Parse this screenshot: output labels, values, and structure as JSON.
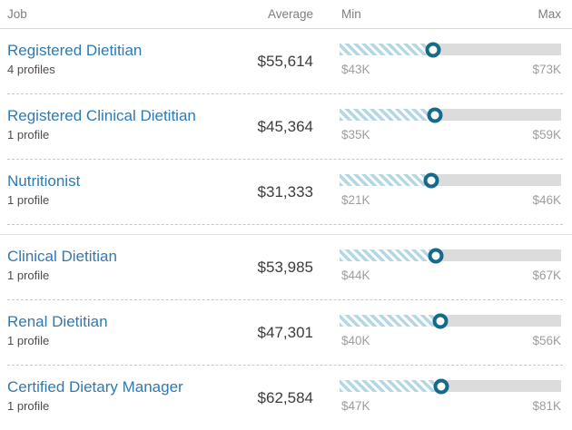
{
  "header": {
    "job": "Job",
    "average": "Average",
    "min": "Min",
    "max": "Max"
  },
  "rows": [
    {
      "title": "Registered Dietitian",
      "profiles": "4 profiles",
      "average_label": "$55,614",
      "average_value": 55614,
      "min_label": "$43K",
      "min_value": 43000,
      "max_label": "$73K",
      "max_value": 73000,
      "section_break": false
    },
    {
      "title": "Registered Clinical Dietitian",
      "profiles": "1 profile",
      "average_label": "$45,364",
      "average_value": 45364,
      "min_label": "$35K",
      "min_value": 35000,
      "max_label": "$59K",
      "max_value": 59000,
      "section_break": false
    },
    {
      "title": "Nutritionist",
      "profiles": "1 profile",
      "average_label": "$31,333",
      "average_value": 31333,
      "min_label": "$21K",
      "min_value": 21000,
      "max_label": "$46K",
      "max_value": 46000,
      "section_break": true
    },
    {
      "title": "Clinical Dietitian",
      "profiles": "1 profile",
      "average_label": "$53,985",
      "average_value": 53985,
      "min_label": "$44K",
      "min_value": 44000,
      "max_label": "$67K",
      "max_value": 67000,
      "section_break": false
    },
    {
      "title": "Renal Dietitian",
      "profiles": "1 profile",
      "average_label": "$47,301",
      "average_value": 47301,
      "min_label": "$40K",
      "min_value": 40000,
      "max_label": "$56K",
      "max_value": 56000,
      "section_break": false
    },
    {
      "title": "Certified Dietary Manager",
      "profiles": "1 profile",
      "average_label": "$62,584",
      "average_value": 62584,
      "min_label": "$47K",
      "min_value": 47000,
      "max_label": "$81K",
      "max_value": 81000,
      "section_break": false
    }
  ],
  "colors": {
    "link_blue": "#2f7ab2",
    "marker_teal": "#156a89",
    "stripe_blue": "#b3d7e5",
    "bar_gray": "#dcdcdc",
    "header_text": "#7e7e7e",
    "range_label_text": "#9d9d9d"
  }
}
